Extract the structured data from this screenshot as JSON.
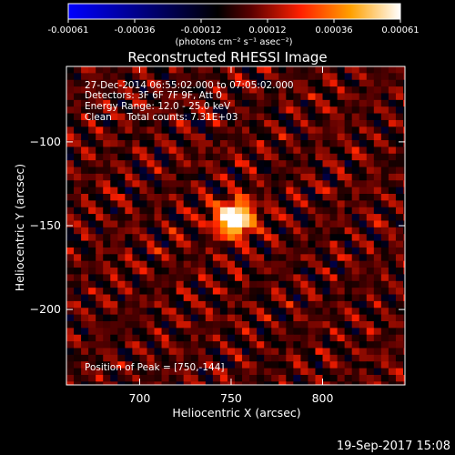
{
  "chart_data": {
    "type": "heatmap",
    "title": "Reconstructed RHESSI Image",
    "xlabel": "Heliocentric X (arcsec)",
    "ylabel": "Heliocentric Y (arcsec)",
    "xlim": [
      660,
      845
    ],
    "ylim": [
      -245,
      -55
    ],
    "x_ticks": [
      700,
      750,
      800
    ],
    "y_ticks": [
      -100,
      -150,
      -200
    ],
    "colorbar": {
      "ticks": [
        "-0.00061",
        "-0.00036",
        "-0.00012",
        "0.00012",
        "0.00036",
        "0.00061"
      ],
      "range": [
        -0.00061,
        0.00061
      ],
      "unit_label": "(photons cm⁻² s⁻¹ asec⁻²)",
      "colormap": [
        "#0000ff",
        "#000000",
        "#7a0000",
        "#ff2a00",
        "#ffb000",
        "#ffffff"
      ]
    },
    "annotations": [
      "27-Dec-2014 06:55:02.000 to 07:05:02.000",
      "Detectors: 3F 6F 7F 9F, Att 0",
      "Energy Range: 12.0 - 25.0 keV",
      "Clean     Total counts: 7.31E+03"
    ],
    "peak_label": "Position of Peak = [750,-144]",
    "peak": {
      "x": 750,
      "y": -144,
      "value": 0.00061
    },
    "grid": false
  },
  "footer": {
    "timestamp": "19-Sep-2017 15:08"
  }
}
